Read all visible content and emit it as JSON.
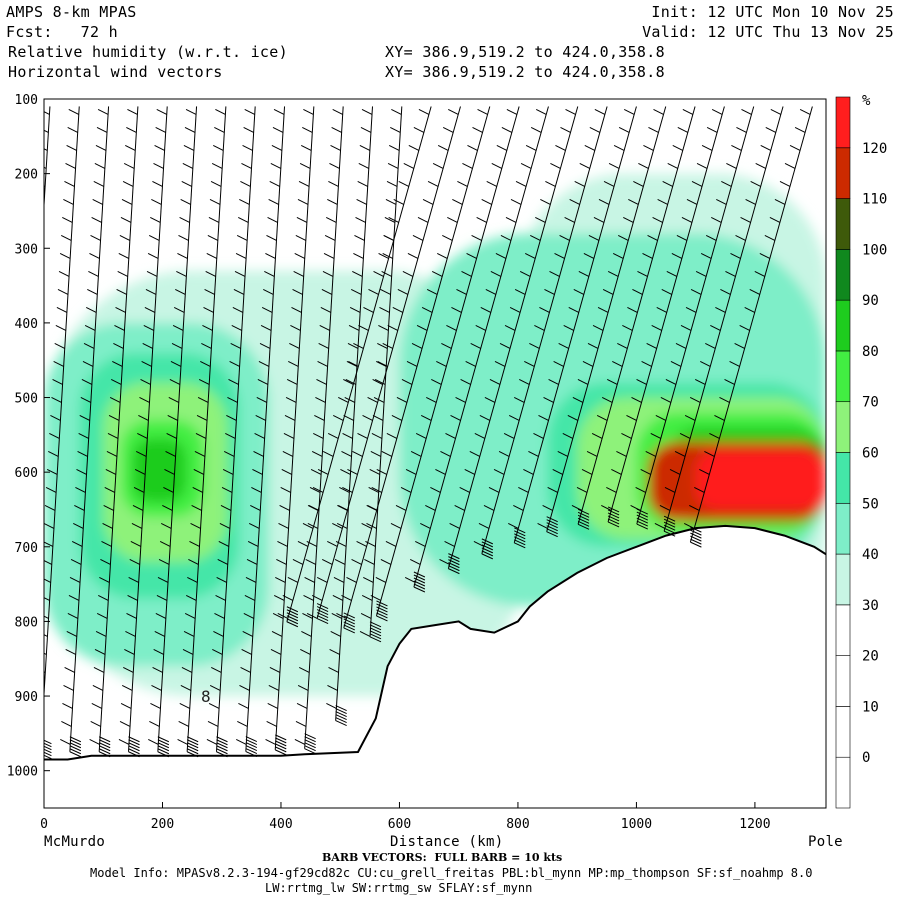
{
  "header": {
    "model": "AMPS 8-km MPAS",
    "fcst": "Fcst:   72 h",
    "field1": "Relative humidity (w.r.t. ice)",
    "field2": "Horizontal wind vectors",
    "xy1": "XY= 386.9,519.2 to 424.0,358.8",
    "xy2": "XY= 386.9,519.2 to 424.0,358.8",
    "init": "Init: 12 UTC Mon 10 Nov 25",
    "valid": "Valid: 12 UTC Thu 13 Nov 25"
  },
  "footer": {
    "barb": "BARB VECTORS:  FULL BARB = 10 kts",
    "model_info": "Model Info: MPASv8.2.3-194-gf29cd82c CU:cu_grell_freitas PBL:bl_mynn MP:mp_thompson SF:sf_noahmp 8.0",
    "model_info2": "LW:rrtmg_lw SW:rrtmg_sw SFLAY:sf_mynn"
  },
  "chart_data": {
    "type": "heatmap",
    "title": "Relative humidity (w.r.t. ice)",
    "xlabel": "Distance (km)",
    "ylabel": "",
    "xlim": [
      0,
      1320
    ],
    "ylim": [
      1050,
      100
    ],
    "x_ticks": [
      0,
      200,
      400,
      600,
      800,
      1000,
      1200
    ],
    "y_ticks": [
      100,
      200,
      300,
      400,
      500,
      600,
      700,
      800,
      900,
      1000
    ],
    "x_end_labels": [
      "McMurdo",
      "Pole"
    ],
    "colorbar": {
      "unit": "%",
      "levels": [
        0,
        10,
        20,
        30,
        40,
        50,
        60,
        70,
        80,
        90,
        100,
        110,
        120
      ],
      "colors": [
        "#ffffff",
        "#ffffff",
        "#ffffff",
        "#ffffff",
        "#c8f5e4",
        "#7eeec8",
        "#44e6a8",
        "#8ef27a",
        "#42ee42",
        "#1ecc1e",
        "#10881e",
        "#3e5a0a",
        "#cc2a00",
        "#ff1e1e"
      ]
    },
    "contour_label": "8",
    "terrain_surface": {
      "x": [
        0,
        40,
        80,
        100,
        200,
        300,
        400,
        440,
        530,
        560,
        580,
        600,
        620,
        660,
        700,
        720,
        760,
        800,
        820,
        850,
        900,
        950,
        1000,
        1050,
        1100,
        1150,
        1200,
        1250,
        1300,
        1320
      ],
      "p": [
        985,
        985,
        980,
        980,
        980,
        980,
        980,
        978,
        975,
        930,
        860,
        830,
        810,
        805,
        800,
        810,
        815,
        800,
        780,
        760,
        735,
        715,
        700,
        685,
        675,
        672,
        675,
        685,
        700,
        710
      ]
    }
  }
}
